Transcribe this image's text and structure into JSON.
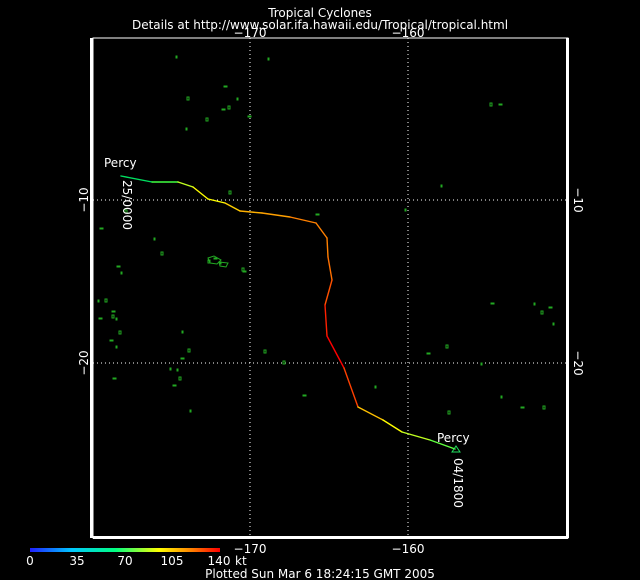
{
  "header": {
    "title": "Tropical Cyclones",
    "subtitle": "Details at http://www.solar.ifa.hawaii.edu/Tropical/tropical.html"
  },
  "axes": {
    "lon_ticks": [
      "−170",
      "−160"
    ],
    "lat_ticks": [
      "−10",
      "−20"
    ],
    "lon_range": [
      -180,
      -150
    ],
    "lat_range": [
      -6,
      -27
    ]
  },
  "storm": {
    "name": "Percy",
    "start_label": "Percy",
    "end_label": "Percy",
    "start_time": "25/0000",
    "end_time": "04/1800"
  },
  "legend": {
    "labels": [
      "0",
      "35",
      "70",
      "105",
      "140"
    ],
    "unit": "kt",
    "colors": [
      "#2020ff",
      "#00c8ff",
      "#00ff80",
      "#ffff00",
      "#ff8000",
      "#ff0000"
    ]
  },
  "footer": {
    "plotted": "Plotted Sun Mar 6 18:24:15 GMT 2005"
  },
  "colors": {
    "background": "#000000",
    "frame": "#ffffff",
    "land": "#22a822",
    "grid": "#ffffff"
  }
}
